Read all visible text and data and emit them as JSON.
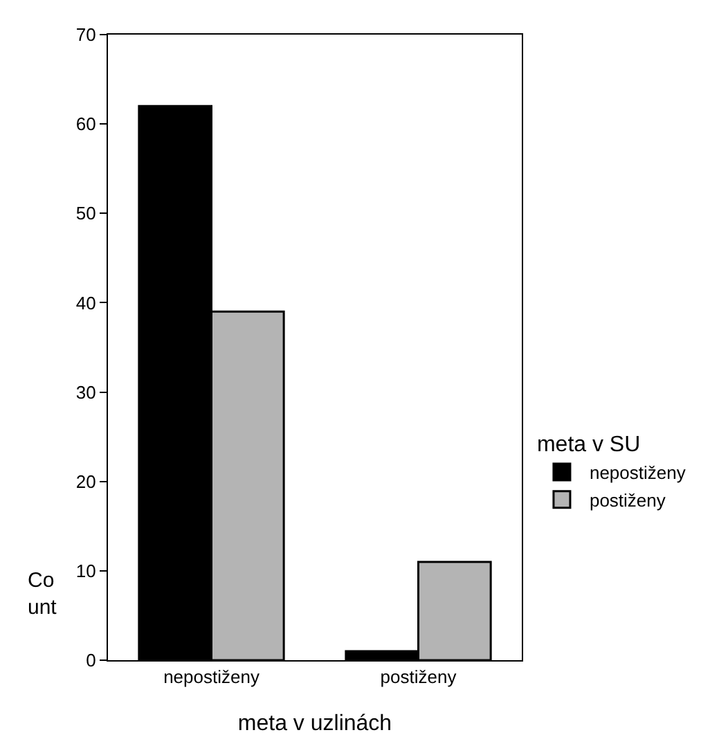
{
  "chart_data": {
    "type": "bar",
    "xlabel": "meta v uzlinách",
    "ylabel": "Co\nunt",
    "legend_title": "meta v SU",
    "categories": [
      "nepostiženy",
      "postiženy"
    ],
    "series": [
      {
        "name": "nepostiženy",
        "color": "#000000",
        "values": [
          62,
          1
        ]
      },
      {
        "name": "postiženy",
        "color": "#b4b4b4",
        "values": [
          39,
          11
        ]
      }
    ],
    "ylim": [
      0,
      70
    ],
    "yticks": [
      0,
      10,
      20,
      30,
      40,
      50,
      60,
      70
    ],
    "legend": "right"
  }
}
